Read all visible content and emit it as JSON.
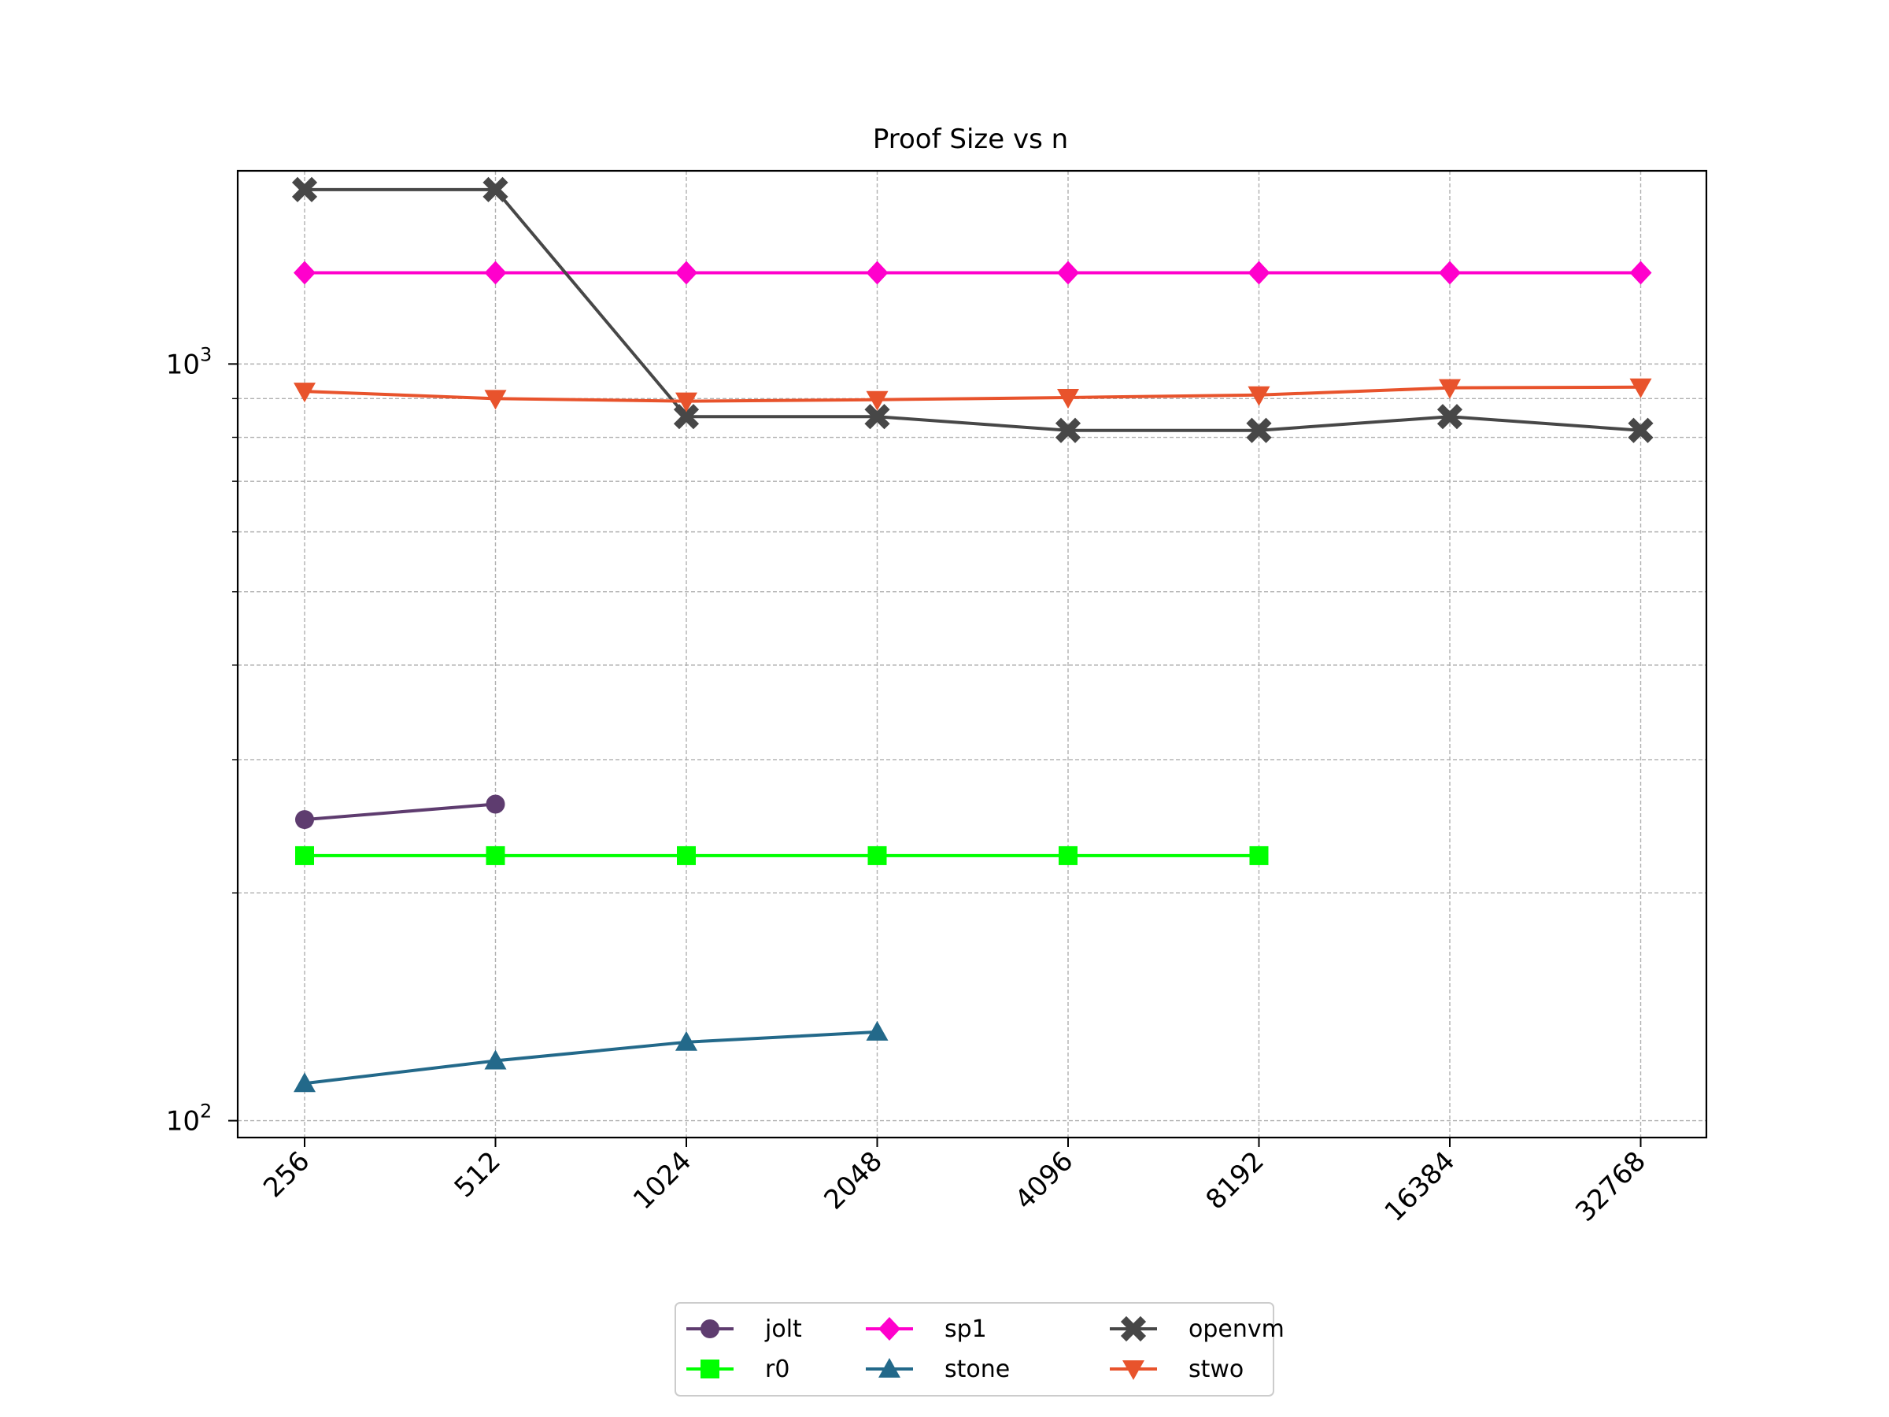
{
  "chart_data": {
    "type": "line",
    "title": "Proof Size vs n",
    "xlabel": "",
    "ylabel": "",
    "yscale": "log",
    "ylim": [
      95,
      1800
    ],
    "x": [
      "256",
      "512",
      "1024",
      "2048",
      "4096",
      "8192",
      "16384",
      "32768"
    ],
    "y_tick_labels": [
      {
        "base": "10",
        "exp": "2",
        "value": 100
      },
      {
        "base": "10",
        "exp": "3",
        "value": 1000
      }
    ],
    "grid": true,
    "legend": {
      "placement": "bottom-center",
      "columns": 3
    },
    "series": [
      {
        "name": "jolt",
        "color": "#5e3c6f",
        "marker": "circle",
        "values": [
          250,
          262,
          null,
          null,
          null,
          null,
          null,
          null
        ]
      },
      {
        "name": "sp1",
        "color": "#ff00cc",
        "marker": "diamond",
        "values": [
          1320,
          1320,
          1320,
          1320,
          1320,
          1320,
          1320,
          1320
        ]
      },
      {
        "name": "openvm",
        "color": "#474747",
        "marker": "x",
        "values": [
          1700,
          1700,
          852,
          852,
          817,
          817,
          852,
          817
        ]
      },
      {
        "name": "r0",
        "color": "#00ff00",
        "marker": "square",
        "values": [
          224,
          224,
          224,
          224,
          224,
          224,
          null,
          null
        ]
      },
      {
        "name": "stone",
        "color": "#23698a",
        "marker": "triangle-up",
        "values": [
          112,
          120,
          127,
          131,
          null,
          null,
          null,
          null
        ]
      },
      {
        "name": "stwo",
        "color": "#e8532c",
        "marker": "triangle-down",
        "values": [
          920,
          900,
          893,
          897,
          903,
          910,
          930,
          932
        ]
      }
    ]
  }
}
